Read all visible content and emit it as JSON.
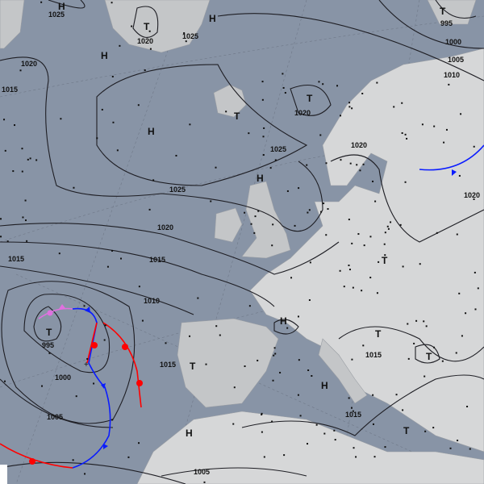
{
  "map": {
    "background_color": "#8894a6",
    "land_color": "#c4c6c8",
    "isobar_labels": [
      "1025",
      "1020",
      "1015",
      "1025",
      "1020",
      "1025",
      "1020",
      "1015",
      "1010",
      "1020",
      "1025",
      "1000",
      "1005",
      "1010",
      "1015",
      "1015",
      "1020",
      "995",
      "1000",
      "1005",
      "1005",
      "1015",
      "1015"
    ],
    "pressure_centers": [
      {
        "letter": "H"
      },
      {
        "letter": "T",
        "value": "1020"
      },
      {
        "letter": "H"
      },
      {
        "letter": "H"
      },
      {
        "letter": "T"
      },
      {
        "letter": "T",
        "value": "1020"
      },
      {
        "letter": "H"
      },
      {
        "letter": "H"
      },
      {
        "letter": "T",
        "value": "995"
      },
      {
        "letter": "T"
      },
      {
        "letter": "H",
        "value": "1015"
      },
      {
        "letter": "T"
      },
      {
        "letter": "T",
        "value": "1015"
      },
      {
        "letter": "H"
      },
      {
        "letter": "T"
      },
      {
        "letter": "H"
      },
      {
        "letter": "T"
      },
      {
        "letter": "T"
      },
      {
        "letter": "T",
        "value": "995"
      }
    ],
    "front_colors": {
      "warm": "#ff0000",
      "cold": "#0a1cff",
      "occluded": "#e070e0"
    }
  }
}
